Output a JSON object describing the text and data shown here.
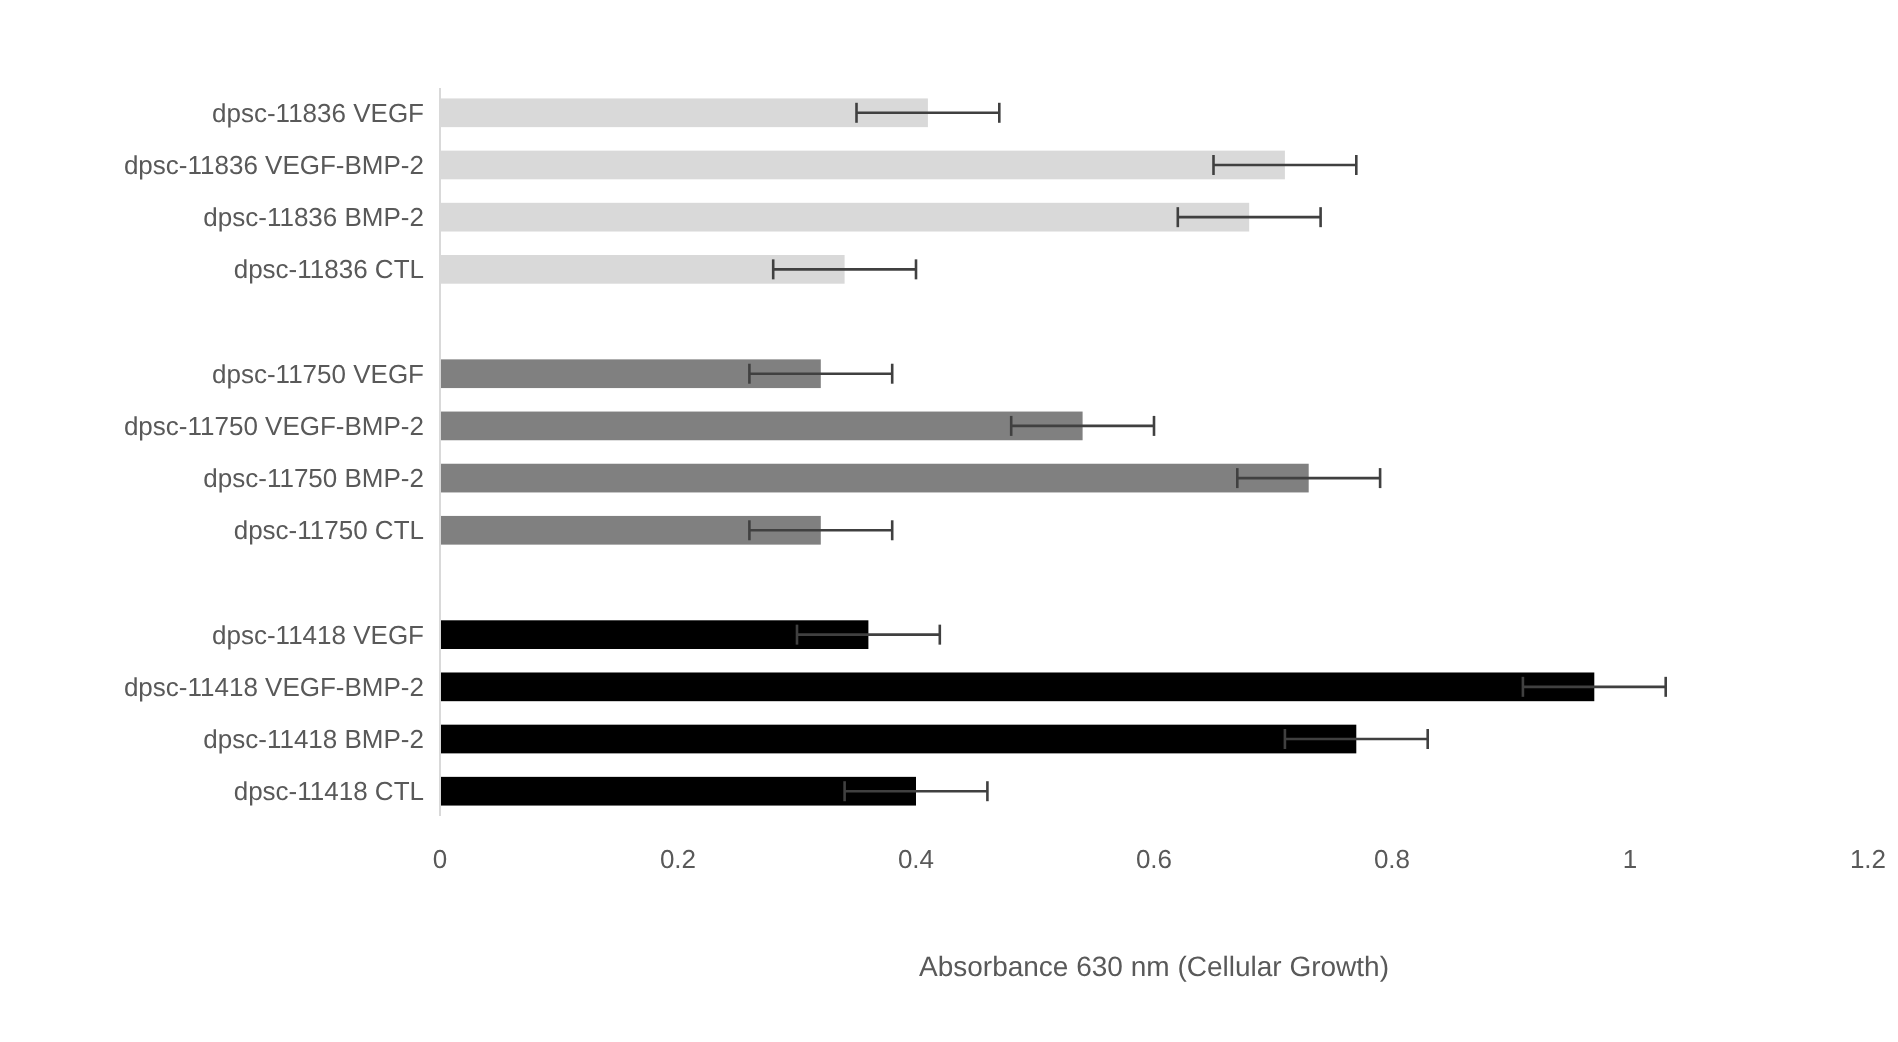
{
  "chart_data": {
    "type": "bar",
    "orientation": "horizontal",
    "xlabel": "Absorbance 630 nm (Cellular Growth)",
    "categories": [
      "dpsc-11836 VEGF",
      "dpsc-11836 VEGF-BMP-2",
      "dpsc-11836 BMP-2",
      "dpsc-11836 CTL",
      null,
      "dpsc-11750 VEGF",
      "dpsc-11750 VEGF-BMP-2",
      "dpsc-11750 BMP-2",
      "dpsc-11750 CTL",
      null,
      "dpsc-11418 VEGF",
      "dpsc-11418 VEGF-BMP-2",
      "dpsc-11418 BMP-2",
      "dpsc-11418 CTL"
    ],
    "values": [
      0.41,
      0.71,
      0.68,
      0.34,
      null,
      0.32,
      0.54,
      0.73,
      0.32,
      null,
      0.36,
      0.97,
      0.77,
      0.4
    ],
    "errors": [
      0.06,
      0.06,
      0.06,
      0.06,
      null,
      0.06,
      0.06,
      0.06,
      0.06,
      null,
      0.06,
      0.06,
      0.06,
      0.06
    ],
    "colors": [
      "#d9d9d9",
      "#d9d9d9",
      "#d9d9d9",
      "#d9d9d9",
      null,
      "#808080",
      "#808080",
      "#808080",
      "#808080",
      null,
      "#000000",
      "#000000",
      "#000000",
      "#000000"
    ],
    "xlim": [
      0,
      1.2
    ],
    "xticks": [
      0,
      0.2,
      0.4,
      0.6,
      0.8,
      1,
      1.2
    ]
  }
}
